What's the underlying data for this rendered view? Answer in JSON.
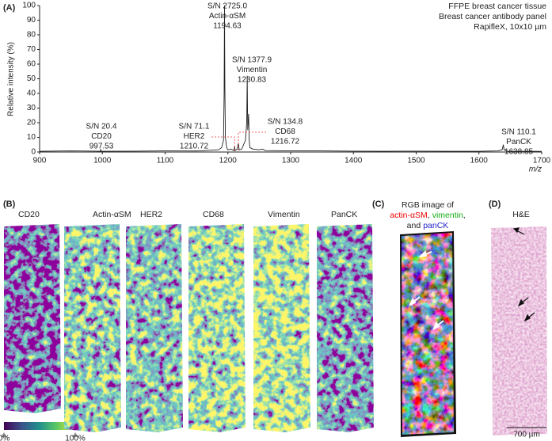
{
  "chart_data": {
    "type": "line",
    "panel_label": "(A)",
    "y_label": "Relative intensity (%)",
    "x_label": "m/z",
    "info": [
      "FFPE breast cancer tissue",
      "Breast cancer antibody panel",
      "RapifleX, 10x10 µm"
    ],
    "x": [
      900,
      950,
      990,
      997,
      997.5,
      998,
      1050,
      1100,
      1150,
      1185,
      1190,
      1193,
      1194,
      1194.6,
      1195.2,
      1196,
      1198,
      1200,
      1205,
      1210,
      1210.7,
      1211.4,
      1215,
      1216.7,
      1218,
      1222,
      1228,
      1230,
      1230.8,
      1231.6,
      1233,
      1234,
      1235,
      1240,
      1250,
      1255,
      1260,
      1300,
      1350,
      1400,
      1450,
      1500,
      1550,
      1600,
      1630,
      1637,
      1638.85,
      1640,
      1645,
      1700
    ],
    "series": [
      {
        "color": "#222222",
        "values": [
          0.5,
          0.8,
          0.6,
          0.5,
          2,
          0.5,
          0.6,
          0.8,
          0.7,
          1.5,
          3,
          8,
          40,
          100,
          45,
          10,
          3,
          1.5,
          2,
          1,
          4,
          1,
          2,
          6,
          1.5,
          2,
          8,
          20,
          52,
          15,
          26,
          8,
          3,
          2,
          1.5,
          2,
          1,
          0.8,
          0.8,
          0.6,
          0.5,
          0.6,
          0.5,
          0.5,
          0.8,
          1.5,
          5,
          1.5,
          0.6,
          0.4
        ]
      }
    ],
    "xlim": [
      900,
      1700
    ],
    "xticks": [
      900,
      1000,
      1100,
      1200,
      1300,
      1400,
      1500,
      1600,
      1700
    ],
    "ylim": [
      0,
      100
    ],
    "yticks": [
      0,
      10,
      20,
      30,
      40,
      50,
      60,
      70,
      80,
      90,
      100
    ],
    "annotations": [
      {
        "sn": "S/N 20.4",
        "name": "CD20",
        "mz": 997.53
      },
      {
        "sn": "S/N 2725.0",
        "name": "Actin-αSM",
        "mz": 1194.63
      },
      {
        "sn": "S/N 1377.9",
        "name": "Vimentin",
        "mz": 1230.83
      },
      {
        "sn": "S/N 71.1",
        "name": "HER2",
        "mz": 1210.72
      },
      {
        "sn": "S/N 134.8",
        "name": "CD68",
        "mz": 1216.72
      },
      {
        "sn": "S/N 110.1",
        "name": "PanCK",
        "mz": 1638.85
      }
    ]
  },
  "panels": {
    "b_label": "(B)",
    "channels": [
      "CD20",
      "Actin-αSM",
      "HER2",
      "CD68",
      "Vimentin",
      "PanCK"
    ],
    "colorbar": [
      "0%",
      "100%"
    ],
    "c_label": "(C)",
    "c_title": "RGB image of",
    "c_parts": [
      "actin-αSM",
      ",",
      "vimentin",
      ",",
      "and",
      "panCK"
    ],
    "d_label": "(D)",
    "d_title": "H&E",
    "scale": "700 µm"
  }
}
